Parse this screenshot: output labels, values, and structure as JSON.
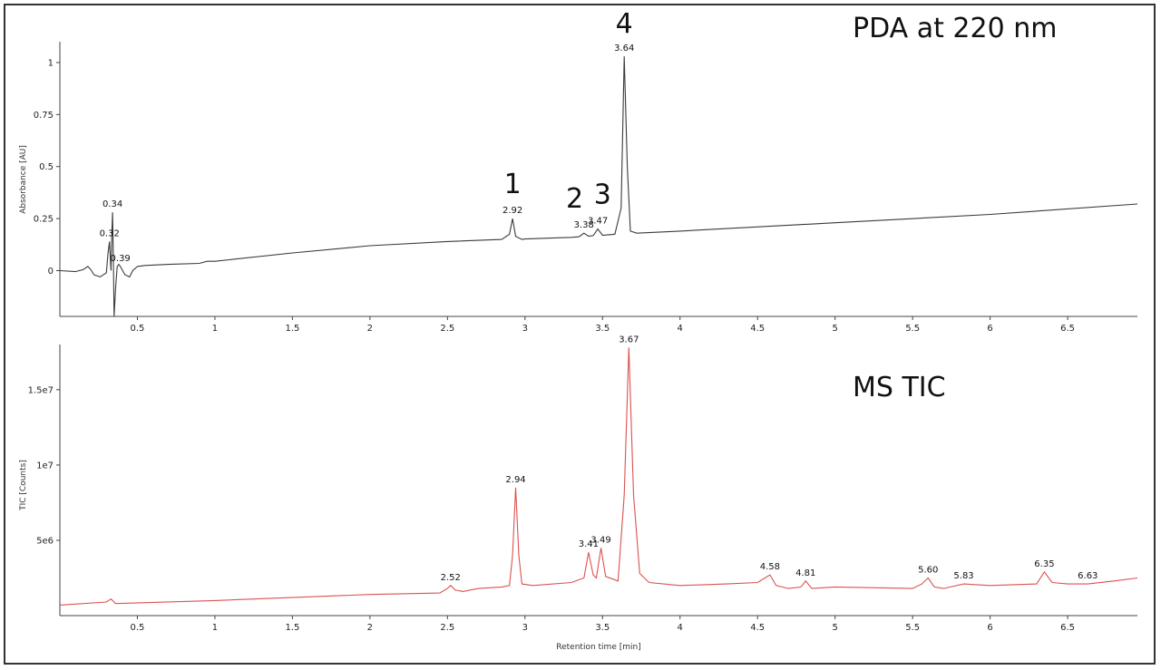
{
  "chart_data": [
    {
      "type": "line",
      "title": "PDA at 220 nm",
      "xlabel": "",
      "ylabel": "Absorbance [AU]",
      "xlim": [
        0,
        6.95
      ],
      "ylim": [
        -0.22,
        1.1
      ],
      "x_ticks": [
        0.5,
        1,
        1.5,
        2,
        2.5,
        3,
        3.5,
        4,
        4.5,
        5,
        5.5,
        6,
        6.5
      ],
      "x_tick_labels": [
        "0.5",
        "1",
        "1.5",
        "2",
        "2.5",
        "3",
        "3.5",
        "4",
        "4.5",
        "5",
        "5.5",
        "6",
        "6.5"
      ],
      "y_ticks": [
        0,
        0.25,
        0.5,
        0.75,
        1
      ],
      "y_tick_labels": [
        "0",
        "0.25",
        "0.5",
        "0.75",
        "1"
      ],
      "grid": false,
      "color": "#3a3a3a",
      "series": [
        {
          "x": [
            0.0,
            0.1,
            0.15,
            0.18,
            0.2,
            0.22,
            0.26,
            0.3,
            0.31,
            0.32,
            0.325,
            0.33,
            0.335,
            0.34,
            0.345,
            0.35,
            0.36,
            0.37,
            0.38,
            0.39,
            0.42,
            0.45,
            0.47,
            0.5,
            0.55,
            0.7,
            0.9,
            0.95,
            1.0,
            1.5,
            2.0,
            2.5,
            2.85,
            2.9,
            2.92,
            2.94,
            2.98,
            3.0,
            3.3,
            3.35,
            3.38,
            3.41,
            3.44,
            3.47,
            3.5,
            3.58,
            3.62,
            3.64,
            3.66,
            3.68,
            3.72,
            4.0,
            5.0,
            6.0,
            6.95
          ],
          "y": [
            0.0,
            -0.005,
            0.005,
            0.02,
            0.005,
            -0.02,
            -0.03,
            -0.01,
            0.08,
            0.14,
            0.06,
            0.0,
            0.18,
            0.28,
            0.05,
            -0.22,
            -0.08,
            0.02,
            0.03,
            0.02,
            -0.02,
            -0.03,
            0.0,
            0.02,
            0.025,
            0.03,
            0.035,
            0.045,
            0.045,
            0.085,
            0.12,
            0.14,
            0.15,
            0.175,
            0.25,
            0.165,
            0.15,
            0.152,
            0.16,
            0.163,
            0.18,
            0.165,
            0.168,
            0.2,
            0.17,
            0.175,
            0.3,
            1.03,
            0.5,
            0.19,
            0.18,
            0.19,
            0.23,
            0.27,
            0.32
          ]
        }
      ],
      "peak_labels": [
        {
          "x": 0.32,
          "y": 0.14,
          "text": "0.32"
        },
        {
          "x": 0.34,
          "y": 0.28,
          "text": "0.34"
        },
        {
          "x": 0.39,
          "y": 0.02,
          "text": "0.39"
        },
        {
          "x": 2.92,
          "y": 0.25,
          "text": "2.92"
        },
        {
          "x": 3.38,
          "y": 0.18,
          "text": "3.38"
        },
        {
          "x": 3.47,
          "y": 0.2,
          "text": "3.47"
        },
        {
          "x": 3.64,
          "y": 1.03,
          "text": "3.64"
        }
      ],
      "peak_numbers": [
        {
          "x": 2.92,
          "text": "1"
        },
        {
          "x": 3.32,
          "text": "2"
        },
        {
          "x": 3.5,
          "text": "3"
        },
        {
          "x": 3.64,
          "text": "4"
        }
      ]
    },
    {
      "type": "line",
      "title": "MS TIC",
      "xlabel": "Retention time [min]",
      "ylabel": "TIC [Counts]",
      "xlim": [
        0,
        6.95
      ],
      "ylim": [
        0,
        18000000
      ],
      "x_ticks": [
        0.5,
        1,
        1.5,
        2,
        2.5,
        3,
        3.5,
        4,
        4.5,
        5,
        5.5,
        6,
        6.5
      ],
      "x_tick_labels": [
        "0.5",
        "1",
        "1.5",
        "2",
        "2.5",
        "3",
        "3.5",
        "4",
        "4.5",
        "5",
        "5.5",
        "6",
        "6.5"
      ],
      "y_ticks": [
        5000000,
        10000000,
        15000000
      ],
      "y_tick_labels": [
        "5e6",
        "1e7",
        "1.5e7"
      ],
      "grid": false,
      "color": "#d9534f",
      "series": [
        {
          "x": [
            0.0,
            0.3,
            0.33,
            0.36,
            1.0,
            2.0,
            2.45,
            2.5,
            2.52,
            2.55,
            2.6,
            2.7,
            2.85,
            2.9,
            2.92,
            2.94,
            2.96,
            2.98,
            3.05,
            3.3,
            3.38,
            3.41,
            3.44,
            3.46,
            3.49,
            3.52,
            3.6,
            3.64,
            3.67,
            3.7,
            3.74,
            3.8,
            4.0,
            4.3,
            4.5,
            4.58,
            4.62,
            4.7,
            4.78,
            4.81,
            4.85,
            5.0,
            5.5,
            5.56,
            5.6,
            5.64,
            5.7,
            5.83,
            6.0,
            6.3,
            6.35,
            6.4,
            6.5,
            6.63,
            6.8,
            6.95
          ],
          "y": [
            700000,
            900000,
            1100000,
            800000,
            1000000,
            1400000,
            1500000,
            1800000,
            2000000,
            1700000,
            1600000,
            1800000,
            1900000,
            2000000,
            4000000,
            8500000,
            4000000,
            2100000,
            2000000,
            2200000,
            2500000,
            4200000,
            2700000,
            2500000,
            4500000,
            2600000,
            2300000,
            8000000,
            17800000,
            8000000,
            2800000,
            2200000,
            2000000,
            2100000,
            2200000,
            2700000,
            2000000,
            1800000,
            1900000,
            2300000,
            1800000,
            1900000,
            1800000,
            2100000,
            2500000,
            1900000,
            1800000,
            2100000,
            2000000,
            2100000,
            2900000,
            2200000,
            2100000,
            2100000,
            2300000,
            2500000
          ]
        }
      ],
      "peak_labels": [
        {
          "x": 2.52,
          "y": 2000000,
          "text": "2.52"
        },
        {
          "x": 2.94,
          "y": 8500000,
          "text": "2.94"
        },
        {
          "x": 3.41,
          "y": 4200000,
          "text": "3.41"
        },
        {
          "x": 3.49,
          "y": 4500000,
          "text": "3.49"
        },
        {
          "x": 3.67,
          "y": 17800000,
          "text": "3.67"
        },
        {
          "x": 4.58,
          "y": 2700000,
          "text": "4.58"
        },
        {
          "x": 4.81,
          "y": 2300000,
          "text": "4.81"
        },
        {
          "x": 5.6,
          "y": 2500000,
          "text": "5.60"
        },
        {
          "x": 5.83,
          "y": 2100000,
          "text": "5.83"
        },
        {
          "x": 6.35,
          "y": 2900000,
          "text": "6.35"
        },
        {
          "x": 6.63,
          "y": 2100000,
          "text": "6.63"
        }
      ]
    }
  ]
}
